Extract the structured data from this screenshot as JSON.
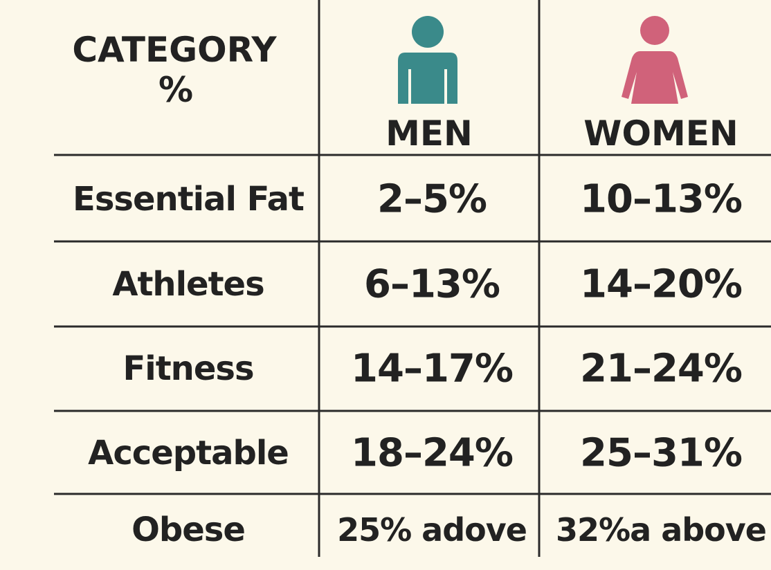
{
  "table": {
    "header": {
      "category": [
        "CATEGORY",
        "%"
      ],
      "columns": [
        "MEN",
        "WOMEN"
      ]
    },
    "rows": [
      [
        "Essential Fat",
        "2–5%",
        "10–13%"
      ],
      [
        "Athletes",
        "6–13%",
        "14–20%"
      ],
      [
        "Fitness",
        "14–17%",
        "21–24%"
      ],
      [
        "Acceptable",
        "18–24%",
        "25–31%"
      ],
      [
        "Obese",
        "25% adove",
        "32%a above"
      ]
    ]
  }
}
